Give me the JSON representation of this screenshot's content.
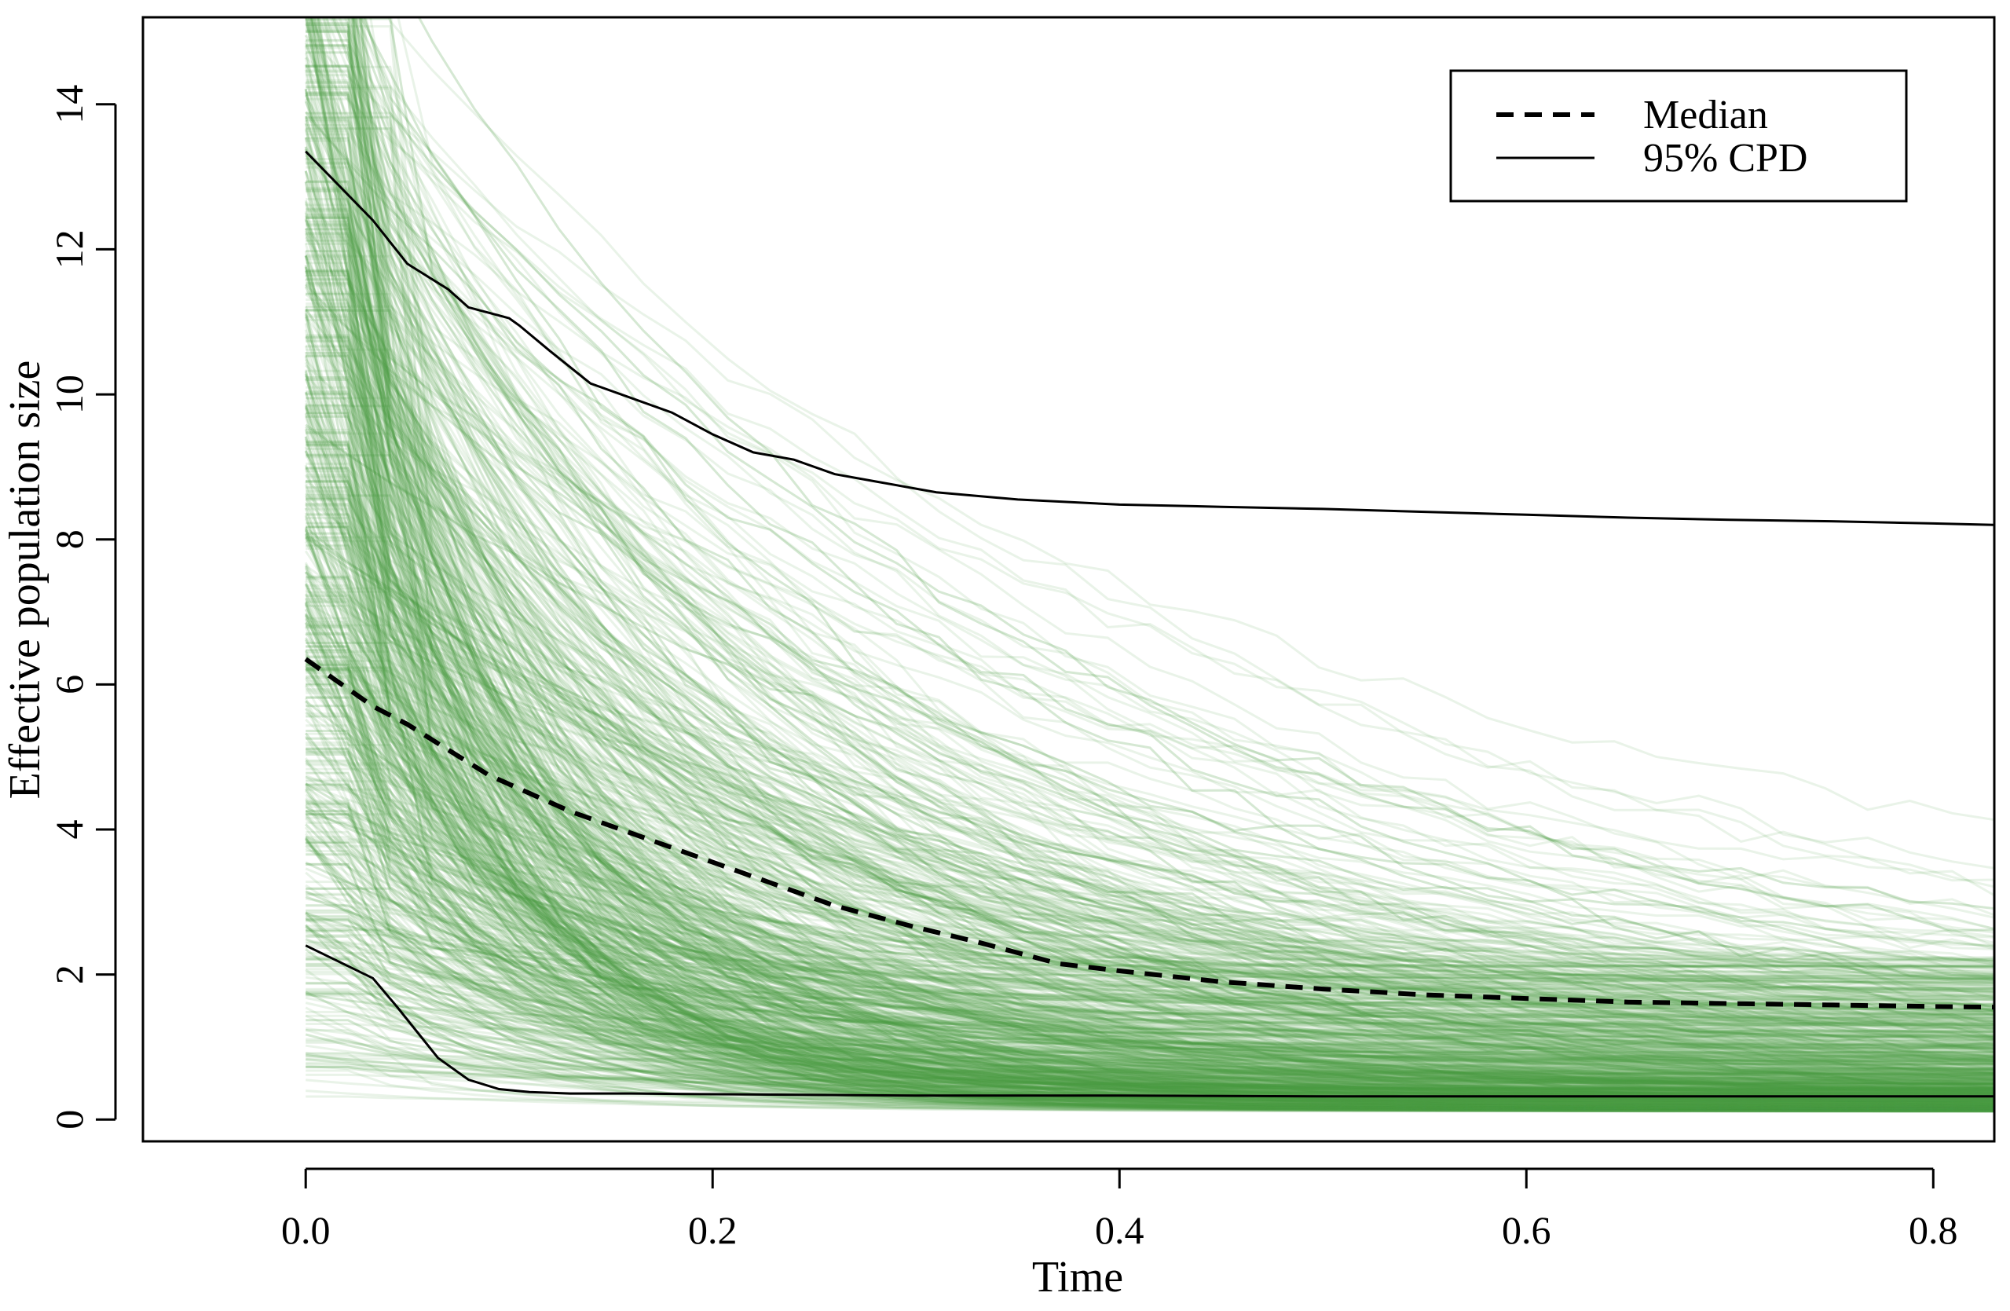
{
  "chart_data": {
    "type": "line",
    "title": "",
    "xlabel": "Time",
    "ylabel": "Effective population size",
    "xlim": [
      -0.08,
      0.83
    ],
    "ylim": [
      -0.3,
      15.2
    ],
    "x_ticks": [
      "0.0",
      "0.2",
      "0.4",
      "0.6",
      "0.8"
    ],
    "y_ticks": [
      "0",
      "2",
      "4",
      "6",
      "8",
      "10",
      "12",
      "14"
    ],
    "grid": false,
    "legend": {
      "position": "top-right",
      "entries": [
        {
          "label": "Median",
          "style": "dashed",
          "color": "#000000"
        },
        {
          "label": "95% CPD",
          "style": "solid",
          "color": "#000000"
        }
      ]
    },
    "background_trajectories": {
      "color": "#4a9a44",
      "description_count": 900,
      "style": "semi-transparent exponential decay curves"
    },
    "series": [
      {
        "name": "Median",
        "style": "dashed",
        "x": [
          0.0,
          0.033,
          0.05,
          0.07,
          0.09,
          0.11,
          0.13,
          0.15,
          0.18,
          0.2,
          0.23,
          0.26,
          0.3,
          0.33,
          0.37,
          0.4,
          0.45,
          0.5,
          0.55,
          0.6,
          0.65,
          0.7,
          0.75,
          0.8,
          0.83
        ],
        "y": [
          6.35,
          5.7,
          5.45,
          5.1,
          4.75,
          4.5,
          4.25,
          4.05,
          3.75,
          3.55,
          3.25,
          2.95,
          2.65,
          2.45,
          2.15,
          2.05,
          1.9,
          1.8,
          1.72,
          1.67,
          1.62,
          1.6,
          1.58,
          1.56,
          1.55
        ]
      },
      {
        "name": "95% CPD",
        "style": "solid",
        "x": [
          0.0,
          0.033,
          0.05,
          0.07,
          0.08,
          0.1,
          0.105,
          0.12,
          0.14,
          0.16,
          0.18,
          0.2,
          0.22,
          0.24,
          0.26,
          0.28,
          0.31,
          0.35,
          0.4,
          0.45,
          0.5,
          0.55,
          0.6,
          0.65,
          0.7,
          0.75,
          0.8,
          0.83
        ],
        "y": [
          13.35,
          12.4,
          11.8,
          11.45,
          11.2,
          11.05,
          10.95,
          10.6,
          10.15,
          9.95,
          9.75,
          9.45,
          9.2,
          9.1,
          8.9,
          8.8,
          8.65,
          8.55,
          8.48,
          8.45,
          8.42,
          8.38,
          8.34,
          8.3,
          8.27,
          8.25,
          8.22,
          8.2
        ]
      },
      {
        "name": "95% CPD",
        "style": "solid",
        "x": [
          0.0,
          0.033,
          0.045,
          0.055,
          0.065,
          0.08,
          0.095,
          0.11,
          0.13,
          0.16,
          0.2,
          0.25,
          0.3,
          0.4,
          0.5,
          0.6,
          0.7,
          0.8,
          0.83
        ],
        "y": [
          2.4,
          1.95,
          1.55,
          1.2,
          0.85,
          0.55,
          0.42,
          0.38,
          0.36,
          0.36,
          0.35,
          0.34,
          0.33,
          0.33,
          0.32,
          0.32,
          0.32,
          0.32,
          0.32
        ]
      }
    ]
  }
}
